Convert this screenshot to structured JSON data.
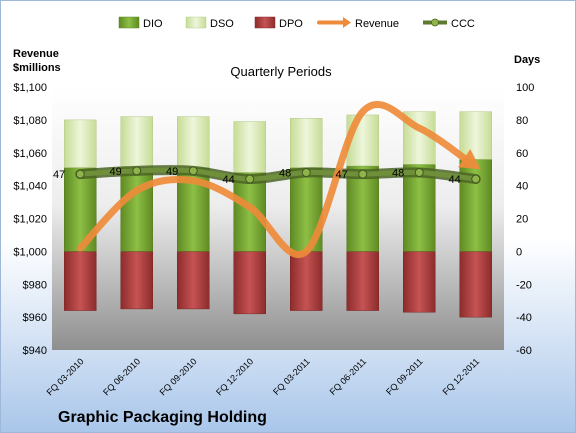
{
  "chart_data": {
    "type": "bar",
    "company": "Graphic Packaging Holding",
    "subtitle": "Quarterly Periods",
    "left_axis_title": [
      "Revenue",
      "$millions"
    ],
    "right_axis_title": "Days",
    "categories": [
      "FQ 03-2010",
      "FQ 06-2010",
      "FQ 09-2010",
      "FQ 12-2010",
      "FQ 03-2011",
      "FQ 06-2011",
      "FQ 09-2011",
      "FQ 12-2011"
    ],
    "left_ticks": [
      "$940",
      "$960",
      "$980",
      "$1,000",
      "$1,020",
      "$1,040",
      "$1,060",
      "$1,080",
      "$1,100"
    ],
    "right_ticks": [
      "-60",
      "-40",
      "-20",
      "0",
      "20",
      "40",
      "60",
      "80",
      "100"
    ],
    "ylim_left": [
      940,
      1100
    ],
    "ylim_right": [
      -60,
      100
    ],
    "legend": [
      "DIO",
      "DSO",
      "DPO",
      "Revenue",
      "CCC"
    ],
    "legend_placement": "top",
    "series": [
      {
        "name": "DIO",
        "axis": "right",
        "values": [
          51,
          51,
          51,
          48,
          51,
          52,
          53,
          56
        ]
      },
      {
        "name": "DSO",
        "axis": "right",
        "values": [
          29,
          31,
          31,
          31,
          30,
          31,
          32,
          29
        ]
      },
      {
        "name": "DPO",
        "axis": "right",
        "values": [
          -36,
          -35,
          -35,
          -38,
          -36,
          -36,
          -37,
          -40
        ]
      },
      {
        "name": "Revenue",
        "axis": "left",
        "values": [
          1002,
          1037,
          1043,
          1027,
          1000,
          1085,
          1075,
          1052
        ]
      },
      {
        "name": "CCC",
        "axis": "right",
        "values": [
          47,
          49,
          49,
          44,
          48,
          47,
          48,
          44
        ]
      }
    ],
    "ccc_labels": [
      "47",
      "49",
      "49",
      "44",
      "48",
      "47",
      "48",
      "44"
    ],
    "colors": {
      "DIO": "#77a632",
      "DSO": "#d7e9b0",
      "DPO": "#a33a3a",
      "Revenue": "#ee8b3a",
      "CCC": "#5e7a2e",
      "CCC_marker": "#8fb54a"
    },
    "grid": false
  }
}
